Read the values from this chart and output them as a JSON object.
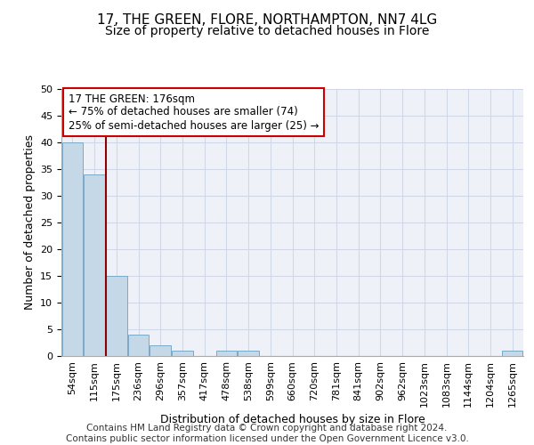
{
  "title1": "17, THE GREEN, FLORE, NORTHAMPTON, NN7 4LG",
  "title2": "Size of property relative to detached houses in Flore",
  "xlabel": "Distribution of detached houses by size in Flore",
  "ylabel": "Number of detached properties",
  "bin_labels": [
    "54sqm",
    "115sqm",
    "175sqm",
    "236sqm",
    "296sqm",
    "357sqm",
    "417sqm",
    "478sqm",
    "538sqm",
    "599sqm",
    "660sqm",
    "720sqm",
    "781sqm",
    "841sqm",
    "902sqm",
    "962sqm",
    "1023sqm",
    "1083sqm",
    "1144sqm",
    "1204sqm",
    "1265sqm"
  ],
  "bar_values": [
    40,
    34,
    15,
    4,
    2,
    1,
    0,
    1,
    1,
    0,
    0,
    0,
    0,
    0,
    0,
    0,
    0,
    0,
    0,
    0,
    1
  ],
  "bar_color": "#c5d8e8",
  "bar_edge_color": "#7aaac8",
  "vline_x_index": 1.525,
  "vline_color": "#8b0000",
  "annotation_text": "17 THE GREEN: 176sqm\n← 75% of detached houses are smaller (74)\n25% of semi-detached houses are larger (25) →",
  "annotation_box_color": "#ffffff",
  "annotation_box_edge_color": "#cc0000",
  "ylim": [
    0,
    50
  ],
  "yticks": [
    0,
    5,
    10,
    15,
    20,
    25,
    30,
    35,
    40,
    45,
    50
  ],
  "grid_color": "#d0d8e8",
  "background_color": "#eef2f8",
  "footer_text": "Contains HM Land Registry data © Crown copyright and database right 2024.\nContains public sector information licensed under the Open Government Licence v3.0.",
  "title1_fontsize": 11,
  "title2_fontsize": 10,
  "xlabel_fontsize": 9,
  "ylabel_fontsize": 9,
  "tick_fontsize": 8,
  "annotation_fontsize": 8.5,
  "footer_fontsize": 7.5
}
